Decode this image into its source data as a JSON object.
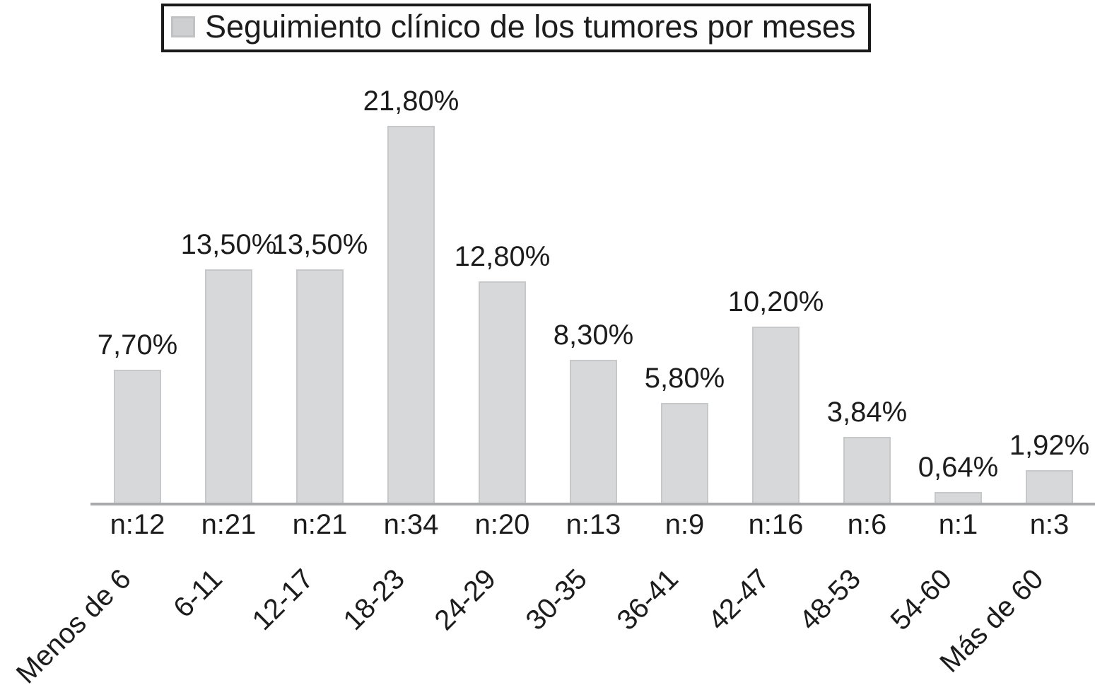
{
  "legend": {
    "title": "Seguimiento clínico de los tumores por meses",
    "swatch_color": "#cdcfd1"
  },
  "chart_data": {
    "type": "bar",
    "title": "Seguimiento clínico de los tumores por meses",
    "categories": [
      "Menos de 6",
      "6-11",
      "12-17",
      "18-23",
      "24-29",
      "30-35",
      "36-41",
      "42-47",
      "48-53",
      "54-60",
      "Más de 60"
    ],
    "series": [
      {
        "name": "Seguimiento clínico de los tumores por meses",
        "values": [
          7.7,
          13.5,
          13.5,
          21.8,
          12.8,
          8.3,
          5.8,
          10.2,
          3.84,
          0.64,
          1.92
        ]
      }
    ],
    "value_labels": [
      "7,70%",
      "13,50%",
      "13,50%",
      "21,80%",
      "12,80%",
      "8,30%",
      "5,80%",
      "10,20%",
      "3,84%",
      "0,64%",
      "1,92%"
    ],
    "counts": [
      "n:12",
      "n:21",
      "n:21",
      "n:34",
      "n:20",
      "n:13",
      "n:9",
      "n:16",
      "n:6",
      "n:1",
      "n:3"
    ],
    "unit": "%",
    "xlabel": "",
    "ylabel": "",
    "ylim": [
      0,
      22
    ],
    "grid": false,
    "legend_position": "top",
    "bar_color": "#d6d8da",
    "bar_border_color": "#c6c8ca",
    "axis_color": "#a8aaac"
  }
}
